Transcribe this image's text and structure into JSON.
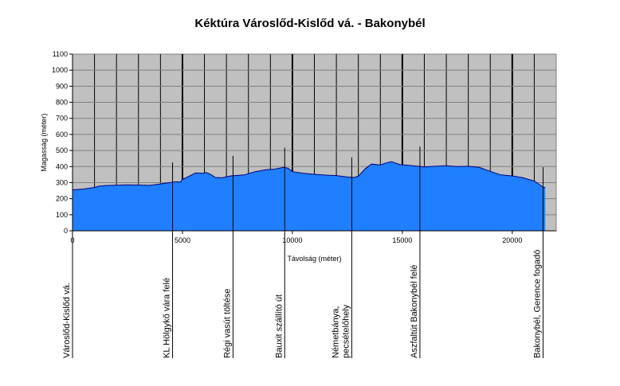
{
  "chart_data": {
    "type": "area",
    "title": "Kéktúra Városlőd-Kislőd vá. - Bakonybél",
    "xlabel": "Távolság (méter)",
    "ylabel": "Magasság (méter)",
    "xlim": [
      0,
      22000
    ],
    "ylim": [
      0,
      1100
    ],
    "xticks": [
      0,
      5000,
      10000,
      15000,
      20000
    ],
    "yticks": [
      0,
      100,
      200,
      300,
      400,
      500,
      600,
      700,
      800,
      900,
      1000,
      1100
    ],
    "grid": true,
    "colors": {
      "fill": "#1f7fff",
      "stroke": "#000080",
      "plot_bg": "#c0c0c0"
    },
    "series": [
      {
        "x": [
          0,
          500,
          1000,
          1200,
          1500,
          2000,
          2500,
          3000,
          3500,
          4000,
          4300,
          4700,
          4900,
          5000,
          5300,
          5600,
          5900,
          6100,
          6300,
          6500,
          6800,
          7200,
          7800,
          8300,
          8800,
          9200,
          9600,
          9800,
          10000,
          10500,
          11000,
          11500,
          12000,
          12500,
          12800,
          13000,
          13300,
          13600,
          14000,
          14200,
          14500,
          14900,
          15300,
          15700,
          16000,
          16500,
          17000,
          17500,
          18000,
          18500,
          19000,
          19500,
          20000,
          20500,
          21000,
          21200,
          21400,
          21500
        ],
        "y": [
          255,
          260,
          270,
          278,
          282,
          284,
          286,
          285,
          283,
          292,
          298,
          305,
          303,
          320,
          340,
          360,
          358,
          362,
          350,
          332,
          330,
          342,
          348,
          368,
          380,
          384,
          395,
          390,
          368,
          358,
          352,
          347,
          344,
          335,
          332,
          340,
          385,
          415,
          410,
          420,
          430,
          412,
          408,
          402,
          398,
          402,
          405,
          400,
          402,
          395,
          370,
          348,
          342,
          330,
          310,
          292,
          272,
          270
        ]
      }
    ],
    "waypoints": [
      {
        "label": "Városlőd-Kislőd vá.",
        "x": 0
      },
      {
        "label": "KL Hölgykő vára felé",
        "x": 4550
      },
      {
        "label": "Régi vasút töltése",
        "x": 7300
      },
      {
        "label": "Bauxit szállító út",
        "x": 9650
      },
      {
        "label": "Németbánya, pecsételőhely",
        "x": 12700
      },
      {
        "label": "Aszfaltút Bakonybél felé",
        "x": 15800
      },
      {
        "label": "Bakonybél, Gerence fogadó",
        "x": 21400
      }
    ]
  }
}
